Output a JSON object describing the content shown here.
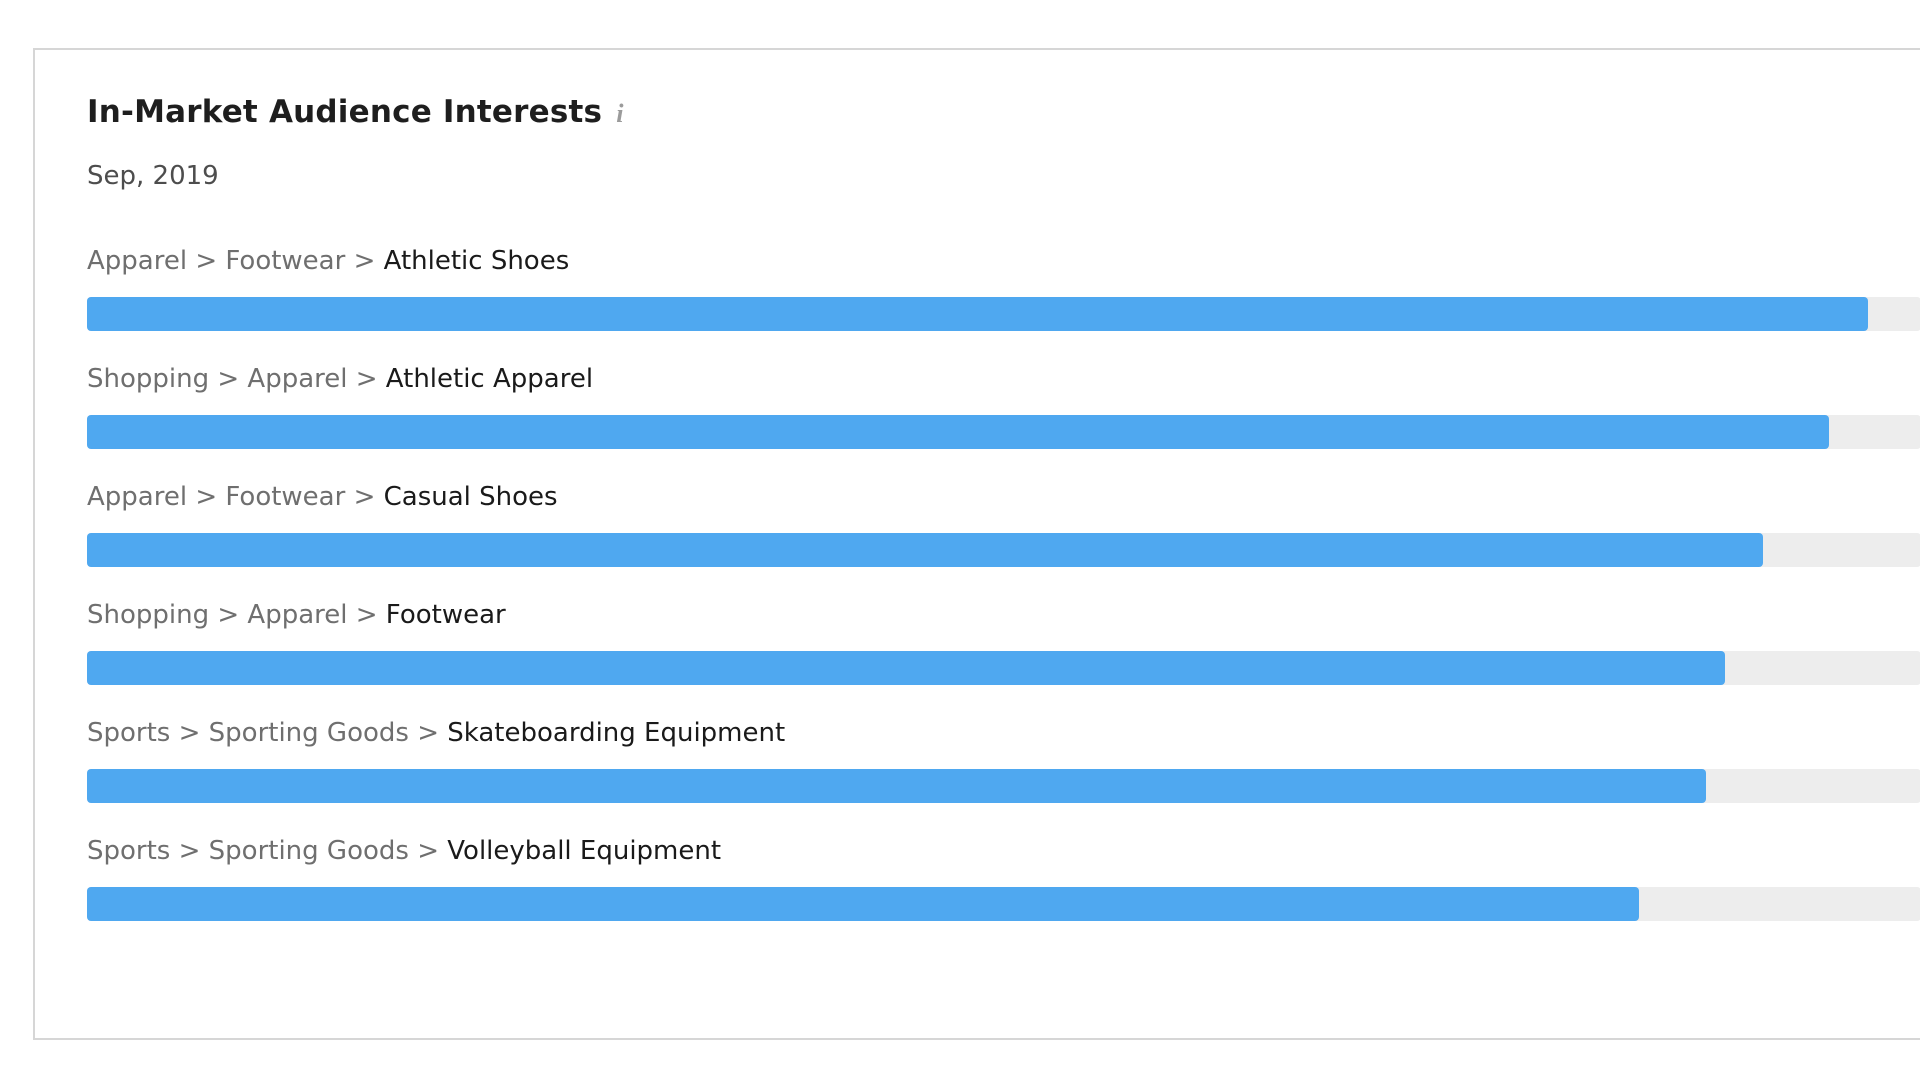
{
  "card": {
    "title": "In-Market Audience Interests",
    "info_icon": "i",
    "subtitle": "Sep, 2019"
  },
  "colors": {
    "bar_fill": "#4fa8f0",
    "bar_track": "#ededed",
    "path_text": "#6f6f6f",
    "category_text": "#1a1a1a",
    "title_text": "#1e1e1e",
    "subtitle_text": "#4d4d4d",
    "card_border": "#d6d6d6"
  },
  "chart_data": {
    "type": "bar",
    "orientation": "horizontal",
    "title": "In-Market Audience Interests",
    "subtitle": "Sep, 2019",
    "axis": "none (no numeric labels shown; values are bar length as % of track)",
    "legend": "none",
    "separator": ">",
    "categories": [
      "Apparel > Footwear > Athletic Shoes",
      "Shopping > Apparel > Athletic Apparel",
      "Apparel > Footwear > Casual Shoes",
      "Shopping > Apparel > Footwear",
      "Sports > Sporting Goods > Skateboarding Equipment",
      "Sports > Sporting Goods > Volleyball Equipment"
    ],
    "items": [
      {
        "path": "Apparel > Footwear",
        "name": "Athletic Shoes",
        "value_pct": 97.1
      },
      {
        "path": "Shopping > Apparel",
        "name": "Athletic Apparel",
        "value_pct": 95.0
      },
      {
        "path": "Apparel > Footwear",
        "name": "Casual Shoes",
        "value_pct": 91.4
      },
      {
        "path": "Shopping > Apparel",
        "name": "Footwear",
        "value_pct": 89.3
      },
      {
        "path": "Sports > Sporting Goods",
        "name": "Skateboarding Equipment",
        "value_pct": 88.3
      },
      {
        "path": "Sports > Sporting Goods",
        "name": "Volleyball Equipment",
        "value_pct": 84.6
      }
    ]
  }
}
